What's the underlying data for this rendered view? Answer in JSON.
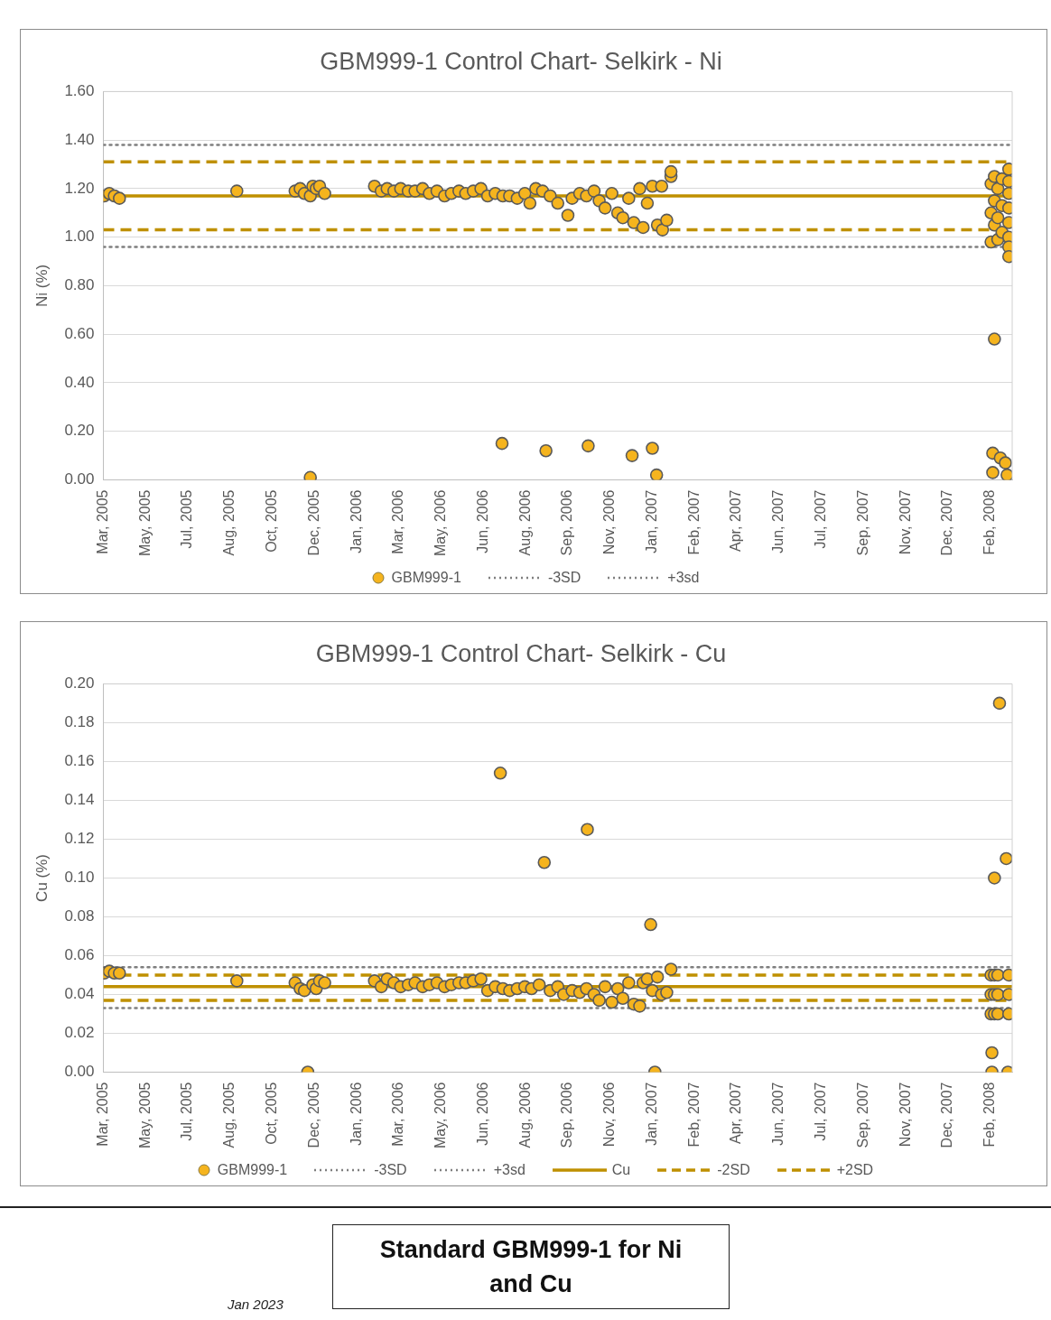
{
  "chart_data": [
    {
      "type": "scatter",
      "title": "GBM999-1 Control Chart- Selkirk - Ni",
      "ylabel": "Ni (%)",
      "grid": "y",
      "legend": "bottom",
      "xlim": [
        "2005-03-28",
        "2008-03-08"
      ],
      "xticks": [
        {
          "value": "2005-03-28",
          "label": "Mar, 2005"
        },
        {
          "value": "2005-05-17",
          "label": "May, 2005"
        },
        {
          "value": "2005-07-06",
          "label": "Jul, 2005"
        },
        {
          "value": "2005-08-25",
          "label": "Aug, 2005"
        },
        {
          "value": "2005-10-14",
          "label": "Oct, 2005"
        },
        {
          "value": "2005-12-03",
          "label": "Dec, 2005"
        },
        {
          "value": "2006-01-22",
          "label": "Jan, 2006"
        },
        {
          "value": "2006-03-13",
          "label": "Mar, 2006"
        },
        {
          "value": "2006-05-02",
          "label": "May, 2006"
        },
        {
          "value": "2006-06-21",
          "label": "Jun, 2006"
        },
        {
          "value": "2006-08-10",
          "label": "Aug, 2006"
        },
        {
          "value": "2006-09-29",
          "label": "Sep, 2006"
        },
        {
          "value": "2006-11-18",
          "label": "Nov, 2006"
        },
        {
          "value": "2007-01-07",
          "label": "Jan, 2007"
        },
        {
          "value": "2007-02-26",
          "label": "Feb, 2007"
        },
        {
          "value": "2007-04-17",
          "label": "Apr, 2007"
        },
        {
          "value": "2007-06-06",
          "label": "Jun, 2007"
        },
        {
          "value": "2007-07-26",
          "label": "Jul, 2007"
        },
        {
          "value": "2007-09-14",
          "label": "Sep, 2007"
        },
        {
          "value": "2007-11-03",
          "label": "Nov, 2007"
        },
        {
          "value": "2007-12-23",
          "label": "Dec, 2007"
        },
        {
          "value": "2008-02-11",
          "label": "Feb, 2008"
        }
      ],
      "ylim": [
        0,
        1.6
      ],
      "yticks": [
        {
          "value": 0,
          "label": "0.00"
        },
        {
          "value": 0.2,
          "label": "0.20"
        },
        {
          "value": 0.4,
          "label": "0.40"
        },
        {
          "value": 0.6,
          "label": "0.60"
        },
        {
          "value": 0.8,
          "label": "0.80"
        },
        {
          "value": 1,
          "label": "1.00"
        },
        {
          "value": 1.2,
          "label": "1.20"
        },
        {
          "value": 1.4,
          "label": "1.40"
        },
        {
          "value": 1.6,
          "label": "1.60"
        }
      ],
      "series": [
        {
          "type": "line",
          "line_style": "solid",
          "marker": "none",
          "color": "#bf9000",
          "x": [
            "2005-03-28",
            "2008-03-08"
          ],
          "values": [
            1.17,
            1.17
          ]
        },
        {
          "type": "line",
          "line_style": "dashed",
          "marker": "none",
          "color": "#bf9000",
          "x": [
            "2005-03-28",
            "2008-03-08"
          ],
          "values": [
            1.03,
            1.03
          ]
        },
        {
          "type": "line",
          "line_style": "dashed",
          "marker": "none",
          "color": "#bf9000",
          "x": [
            "2005-03-28",
            "2008-03-08"
          ],
          "values": [
            1.31,
            1.31
          ]
        },
        {
          "marker": "circle",
          "name": "GBM999-1",
          "color": "#f5b41e",
          "x": [
            "2005-03-29",
            "2005-04-04",
            "2005-04-10",
            "2005-04-16",
            "2005-09-02",
            "2005-11-10",
            "2005-11-16",
            "2005-11-21",
            "2005-11-28",
            "2005-11-28",
            "2005-12-01",
            "2005-12-05",
            "2005-12-09",
            "2005-12-15",
            "2006-02-12",
            "2006-02-20",
            "2006-02-27",
            "2006-03-07",
            "2006-03-15",
            "2006-03-24",
            "2006-04-01",
            "2006-04-10",
            "2006-04-18",
            "2006-04-27",
            "2006-05-06",
            "2006-05-14",
            "2006-05-23",
            "2006-05-31",
            "2006-06-09",
            "2006-06-18",
            "2006-06-26",
            "2006-07-05",
            "2006-07-13",
            "2006-07-14",
            "2006-07-22",
            "2006-07-31",
            "2006-08-09",
            "2006-08-15",
            "2006-08-22",
            "2006-08-30",
            "2006-09-03",
            "2006-09-08",
            "2006-09-17",
            "2006-09-29",
            "2006-10-04",
            "2006-10-13",
            "2006-10-21",
            "2006-10-23",
            "2006-10-30",
            "2006-11-05",
            "2006-11-12",
            "2006-11-20",
            "2006-11-27",
            "2006-12-03",
            "2006-12-10",
            "2006-12-14",
            "2006-12-16",
            "2006-12-23",
            "2006-12-27",
            "2007-01-01",
            "2007-01-07",
            "2007-01-07",
            "2007-01-12",
            "2007-01-13",
            "2007-01-18",
            "2007-01-19",
            "2007-01-24",
            "2007-01-29",
            "2007-01-29",
            "2008-02-12",
            "2008-02-12",
            "2008-02-12",
            "2008-02-14",
            "2008-02-14",
            "2008-02-16",
            "2008-02-16",
            "2008-02-16",
            "2008-02-16",
            "2008-02-20",
            "2008-02-20",
            "2008-02-20",
            "2008-02-23",
            "2008-02-25",
            "2008-02-25",
            "2008-02-25",
            "2008-02-29",
            "2008-03-02",
            "2008-03-04",
            "2008-03-04",
            "2008-03-04",
            "2008-03-04",
            "2008-03-04",
            "2008-03-04",
            "2008-03-04",
            "2008-03-04"
          ],
          "values": [
            1.17,
            1.18,
            1.17,
            1.16,
            1.19,
            1.19,
            1.2,
            1.18,
            0.01,
            1.17,
            1.21,
            1.2,
            1.21,
            1.18,
            1.21,
            1.19,
            1.2,
            1.19,
            1.2,
            1.19,
            1.19,
            1.2,
            1.18,
            1.19,
            1.17,
            1.18,
            1.19,
            1.18,
            1.19,
            1.2,
            1.17,
            1.18,
            0.15,
            1.17,
            1.17,
            1.16,
            1.18,
            1.14,
            1.2,
            1.19,
            0.12,
            1.17,
            1.14,
            1.09,
            1.16,
            1.18,
            1.17,
            0.14,
            1.19,
            1.15,
            1.12,
            1.18,
            1.1,
            1.08,
            1.16,
            0.1,
            1.06,
            1.2,
            1.04,
            1.14,
            0.13,
            1.21,
            0.02,
            1.05,
            1.21,
            1.03,
            1.07,
            1.25,
            1.27,
            1.22,
            1.1,
            0.98,
            0.11,
            0.03,
            0.58,
            1.25,
            1.15,
            1.05,
            1.2,
            1.08,
            0.99,
            0.09,
            1.24,
            1.13,
            1.02,
            0.07,
            0.02,
            1.28,
            1.23,
            1.18,
            1.12,
            1.06,
            1.0,
            0.96,
            0.92
          ]
        },
        {
          "type": "line",
          "line_style": "dotted",
          "marker": "none",
          "name": "-3SD",
          "color": "#7f7f7f",
          "x": [
            "2005-03-28",
            "2008-03-08"
          ],
          "values": [
            0.96,
            0.96
          ]
        },
        {
          "type": "line",
          "line_style": "dotted",
          "marker": "none",
          "name": "+3sd",
          "color": "#7f7f7f",
          "x": [
            "2005-03-28",
            "2008-03-08"
          ],
          "values": [
            1.38,
            1.38
          ]
        }
      ]
    },
    {
      "type": "scatter",
      "title": "GBM999-1 Control Chart- Selkirk - Cu",
      "ylabel": "Cu (%)",
      "grid": "y",
      "legend": "bottom",
      "xlim": [
        "2005-03-28",
        "2008-03-08"
      ],
      "xticks": [
        {
          "value": "2005-03-28",
          "label": "Mar, 2005"
        },
        {
          "value": "2005-05-17",
          "label": "May, 2005"
        },
        {
          "value": "2005-07-06",
          "label": "Jul, 2005"
        },
        {
          "value": "2005-08-25",
          "label": "Aug, 2005"
        },
        {
          "value": "2005-10-14",
          "label": "Oct, 2005"
        },
        {
          "value": "2005-12-03",
          "label": "Dec, 2005"
        },
        {
          "value": "2006-01-22",
          "label": "Jan, 2006"
        },
        {
          "value": "2006-03-13",
          "label": "Mar, 2006"
        },
        {
          "value": "2006-05-02",
          "label": "May, 2006"
        },
        {
          "value": "2006-06-21",
          "label": "Jun, 2006"
        },
        {
          "value": "2006-08-10",
          "label": "Aug, 2006"
        },
        {
          "value": "2006-09-29",
          "label": "Sep, 2006"
        },
        {
          "value": "2006-11-18",
          "label": "Nov, 2006"
        },
        {
          "value": "2007-01-07",
          "label": "Jan, 2007"
        },
        {
          "value": "2007-02-26",
          "label": "Feb, 2007"
        },
        {
          "value": "2007-04-17",
          "label": "Apr, 2007"
        },
        {
          "value": "2007-06-06",
          "label": "Jun, 2007"
        },
        {
          "value": "2007-07-26",
          "label": "Jul, 2007"
        },
        {
          "value": "2007-09-14",
          "label": "Sep, 2007"
        },
        {
          "value": "2007-11-03",
          "label": "Nov, 2007"
        },
        {
          "value": "2007-12-23",
          "label": "Dec, 2007"
        },
        {
          "value": "2008-02-11",
          "label": "Feb, 2008"
        }
      ],
      "ylim": [
        0,
        0.2
      ],
      "yticks": [
        {
          "value": 0,
          "label": "0.00"
        },
        {
          "value": 0.02,
          "label": "0.02"
        },
        {
          "value": 0.04,
          "label": "0.04"
        },
        {
          "value": 0.06,
          "label": "0.06"
        },
        {
          "value": 0.08,
          "label": "0.08"
        },
        {
          "value": 0.1,
          "label": "0.10"
        },
        {
          "value": 0.12,
          "label": "0.12"
        },
        {
          "value": 0.14,
          "label": "0.14"
        },
        {
          "value": 0.16,
          "label": "0.16"
        },
        {
          "value": 0.18,
          "label": "0.18"
        },
        {
          "value": 0.2,
          "label": "0.20"
        }
      ],
      "annotations": [
        "Standard GBM999-1 for Ni and Cu",
        "Jan 2023"
      ],
      "series": [
        {
          "marker": "circle",
          "name": "GBM999-1",
          "color": "#f5b41e",
          "x": [
            "2005-03-29",
            "2005-04-04",
            "2005-04-10",
            "2005-04-16",
            "2005-09-02",
            "2005-11-10",
            "2005-11-16",
            "2005-11-21",
            "2005-11-25",
            "2005-12-01",
            "2005-12-05",
            "2005-12-09",
            "2005-12-15",
            "2006-02-12",
            "2006-02-20",
            "2006-02-27",
            "2006-03-07",
            "2006-03-15",
            "2006-03-24",
            "2006-04-01",
            "2006-04-10",
            "2006-04-18",
            "2006-04-27",
            "2006-05-06",
            "2006-05-14",
            "2006-05-23",
            "2006-05-31",
            "2006-06-09",
            "2006-06-18",
            "2006-06-26",
            "2006-07-05",
            "2006-07-11",
            "2006-07-14",
            "2006-07-22",
            "2006-07-31",
            "2006-08-09",
            "2006-08-17",
            "2006-08-26",
            "2006-09-01",
            "2006-09-08",
            "2006-09-17",
            "2006-09-24",
            "2006-10-04",
            "2006-10-13",
            "2006-10-21",
            "2006-10-22",
            "2006-10-30",
            "2006-11-05",
            "2006-11-12",
            "2006-11-20",
            "2006-11-27",
            "2006-12-03",
            "2006-12-10",
            "2006-12-16",
            "2006-12-23",
            "2006-12-27",
            "2007-01-01",
            "2007-01-05",
            "2007-01-07",
            "2007-01-10",
            "2007-01-13",
            "2007-01-18",
            "2007-01-24",
            "2007-01-29",
            "2008-02-12",
            "2008-02-12",
            "2008-02-12",
            "2008-02-13",
            "2008-02-13",
            "2008-02-16",
            "2008-02-16",
            "2008-02-16",
            "2008-02-16",
            "2008-02-20",
            "2008-02-20",
            "2008-02-20",
            "2008-02-22",
            "2008-03-01",
            "2008-03-03",
            "2008-03-04",
            "2008-03-04",
            "2008-03-04"
          ],
          "values": [
            0.051,
            0.052,
            0.051,
            0.051,
            0.047,
            0.046,
            0.043,
            0.042,
            0.0,
            0.045,
            0.043,
            0.047,
            0.046,
            0.047,
            0.044,
            0.048,
            0.046,
            0.044,
            0.045,
            0.046,
            0.044,
            0.045,
            0.046,
            0.044,
            0.045,
            0.046,
            0.046,
            0.047,
            0.048,
            0.042,
            0.044,
            0.154,
            0.043,
            0.042,
            0.043,
            0.044,
            0.043,
            0.045,
            0.108,
            0.042,
            0.044,
            0.04,
            0.042,
            0.041,
            0.043,
            0.125,
            0.04,
            0.037,
            0.044,
            0.036,
            0.043,
            0.038,
            0.046,
            0.035,
            0.034,
            0.046,
            0.048,
            0.076,
            0.042,
            0.0,
            0.049,
            0.04,
            0.041,
            0.053,
            0.05,
            0.04,
            0.03,
            0.01,
            0.0,
            0.1,
            0.05,
            0.04,
            0.03,
            0.05,
            0.04,
            0.03,
            0.19,
            0.11,
            0.0,
            0.05,
            0.04,
            0.03
          ]
        },
        {
          "type": "line",
          "line_style": "dotted",
          "marker": "none",
          "name": "-3SD",
          "color": "#7f7f7f",
          "x": [
            "2005-03-28",
            "2008-03-08"
          ],
          "values": [
            0.033,
            0.033
          ]
        },
        {
          "type": "line",
          "line_style": "dotted",
          "marker": "none",
          "name": "+3sd",
          "color": "#7f7f7f",
          "x": [
            "2005-03-28",
            "2008-03-08"
          ],
          "values": [
            0.054,
            0.054
          ]
        },
        {
          "type": "line",
          "line_style": "solid",
          "marker": "none",
          "name": "Cu",
          "color": "#bf9000",
          "x": [
            "2005-03-28",
            "2008-03-08"
          ],
          "values": [
            0.044,
            0.044
          ]
        },
        {
          "type": "line",
          "line_style": "dashed",
          "marker": "none",
          "name": "-2SD",
          "color": "#bf9000",
          "x": [
            "2005-03-28",
            "2008-03-08"
          ],
          "values": [
            0.037,
            0.037
          ]
        },
        {
          "type": "line",
          "line_style": "dashed",
          "marker": "none",
          "name": "+2SD",
          "color": "#bf9000",
          "x": [
            "2005-03-28",
            "2008-03-08"
          ],
          "values": [
            0.05,
            0.05
          ]
        }
      ]
    }
  ]
}
